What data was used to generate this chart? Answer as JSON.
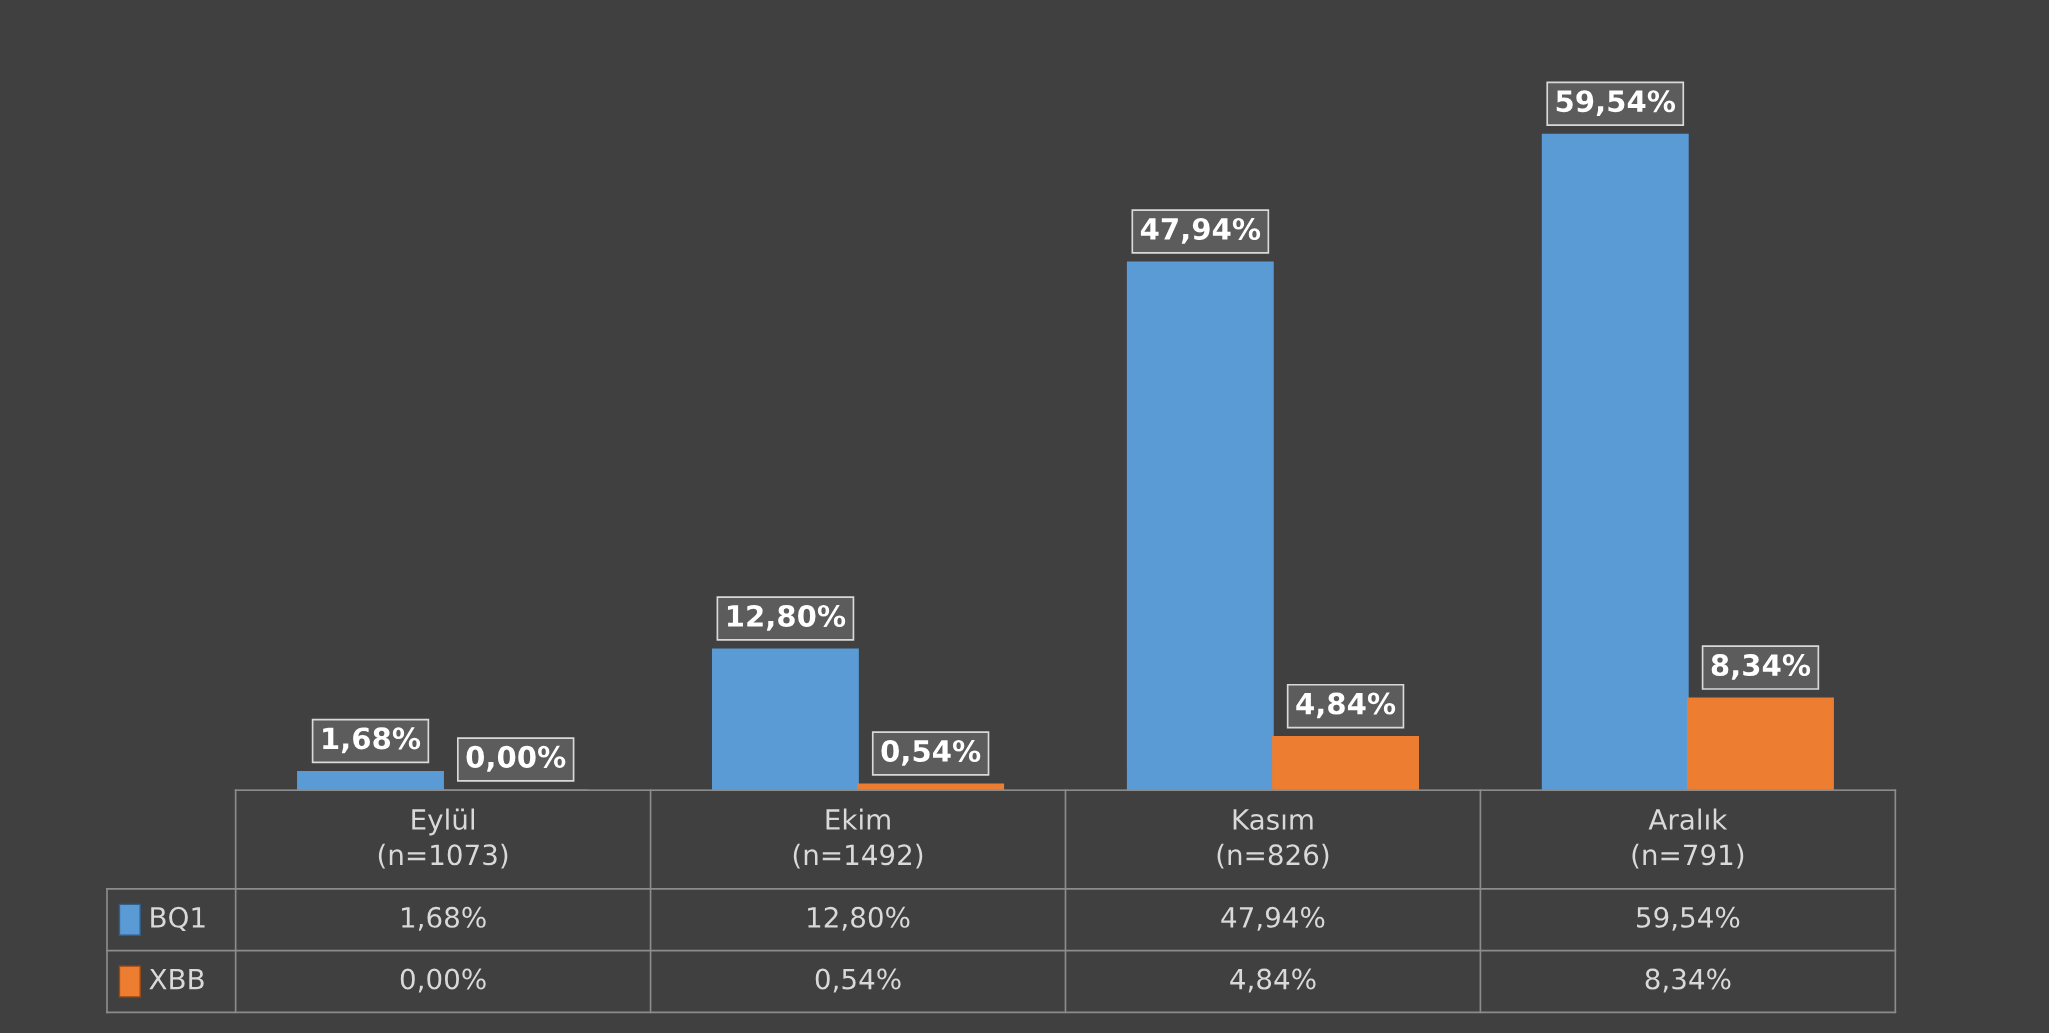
{
  "chart_data": {
    "type": "bar",
    "categories": [
      "Eylül\n(n=1073)",
      "Ekim\n(n=1492)",
      "Kasım\n(n=826)",
      "Aralık\n(n=791)"
    ],
    "series": [
      {
        "name": "BQ1",
        "color": "#5b9bd5",
        "values": [
          1.68,
          12.8,
          47.94,
          59.54
        ],
        "value_labels": [
          "1,68%",
          "12,80%",
          "47,94%",
          "59,54%"
        ]
      },
      {
        "name": "XBB",
        "color": "#ed7d31",
        "values": [
          0.0,
          0.54,
          4.84,
          8.34
        ],
        "value_labels": [
          "0,00%",
          "0,54%",
          "4,84%",
          "8,34%"
        ]
      }
    ],
    "legend": "bottom left"
  }
}
